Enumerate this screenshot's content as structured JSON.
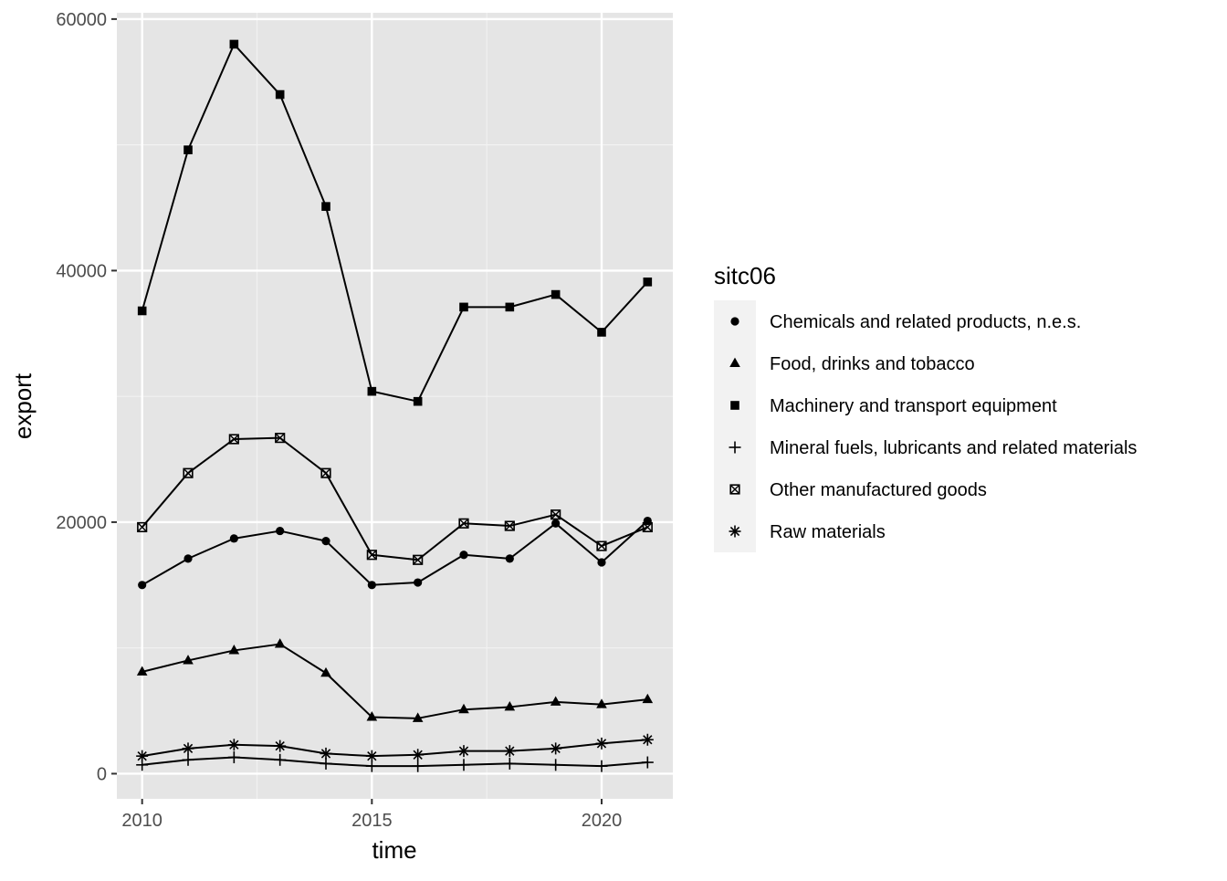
{
  "chart_data": {
    "type": "line",
    "title": "",
    "xlabel": "time",
    "ylabel": "export",
    "xlim": [
      2009.45,
      2021.55
    ],
    "ylim": [
      -2000,
      60500
    ],
    "x_ticks": [
      2010,
      2015,
      2020
    ],
    "y_ticks": [
      0,
      20000,
      40000,
      60000
    ],
    "grid": true,
    "legend_title": "sitc06",
    "legend_position": "right",
    "x": [
      2010,
      2011,
      2012,
      2013,
      2014,
      2015,
      2016,
      2017,
      2018,
      2019,
      2020,
      2021
    ],
    "series": [
      {
        "name": "Chemicals and related products, n.e.s.",
        "shape": "circle",
        "values": [
          15000,
          17100,
          18700,
          19300,
          18500,
          15000,
          15200,
          17400,
          17100,
          19900,
          16800,
          20100
        ]
      },
      {
        "name": "Food, drinks and tobacco",
        "shape": "triangle",
        "values": [
          8100,
          9000,
          9800,
          10300,
          8000,
          4500,
          4400,
          5100,
          5300,
          5700,
          5500,
          5900
        ]
      },
      {
        "name": "Machinery and transport equipment",
        "shape": "square",
        "values": [
          36800,
          49600,
          58000,
          54000,
          45100,
          30400,
          29600,
          37100,
          37100,
          38100,
          35100,
          39100
        ]
      },
      {
        "name": "Mineral fuels, lubricants and related materials",
        "shape": "plus",
        "values": [
          700,
          1100,
          1300,
          1100,
          800,
          600,
          600,
          700,
          800,
          700,
          600,
          900
        ]
      },
      {
        "name": "Other manufactured goods",
        "shape": "boxcross",
        "values": [
          19600,
          23900,
          26600,
          26700,
          23900,
          17400,
          17000,
          19900,
          19700,
          20600,
          18100,
          19600
        ]
      },
      {
        "name": "Raw materials",
        "shape": "asterisk",
        "values": [
          1400,
          2000,
          2300,
          2200,
          1600,
          1400,
          1500,
          1800,
          1800,
          2000,
          2400,
          2700
        ]
      }
    ],
    "colors": {
      "panel_background": "#e5e5e5",
      "grid_major": "#ffffff",
      "grid_minor": "#f2f2f2",
      "line": "#000000",
      "tick_text": "#4d4d4d",
      "legend_key_background": "#f2f2f2"
    }
  }
}
